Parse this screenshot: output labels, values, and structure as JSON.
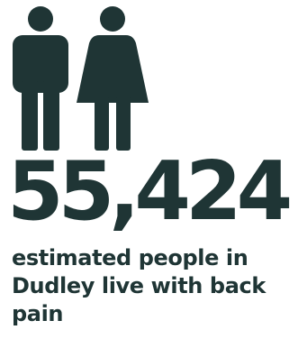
{
  "infographic": {
    "icons": [
      "man-icon",
      "woman-icon"
    ],
    "statistic": "55,424",
    "caption": "estimated people in Dudley live with back pain",
    "color": "#1f3535"
  }
}
